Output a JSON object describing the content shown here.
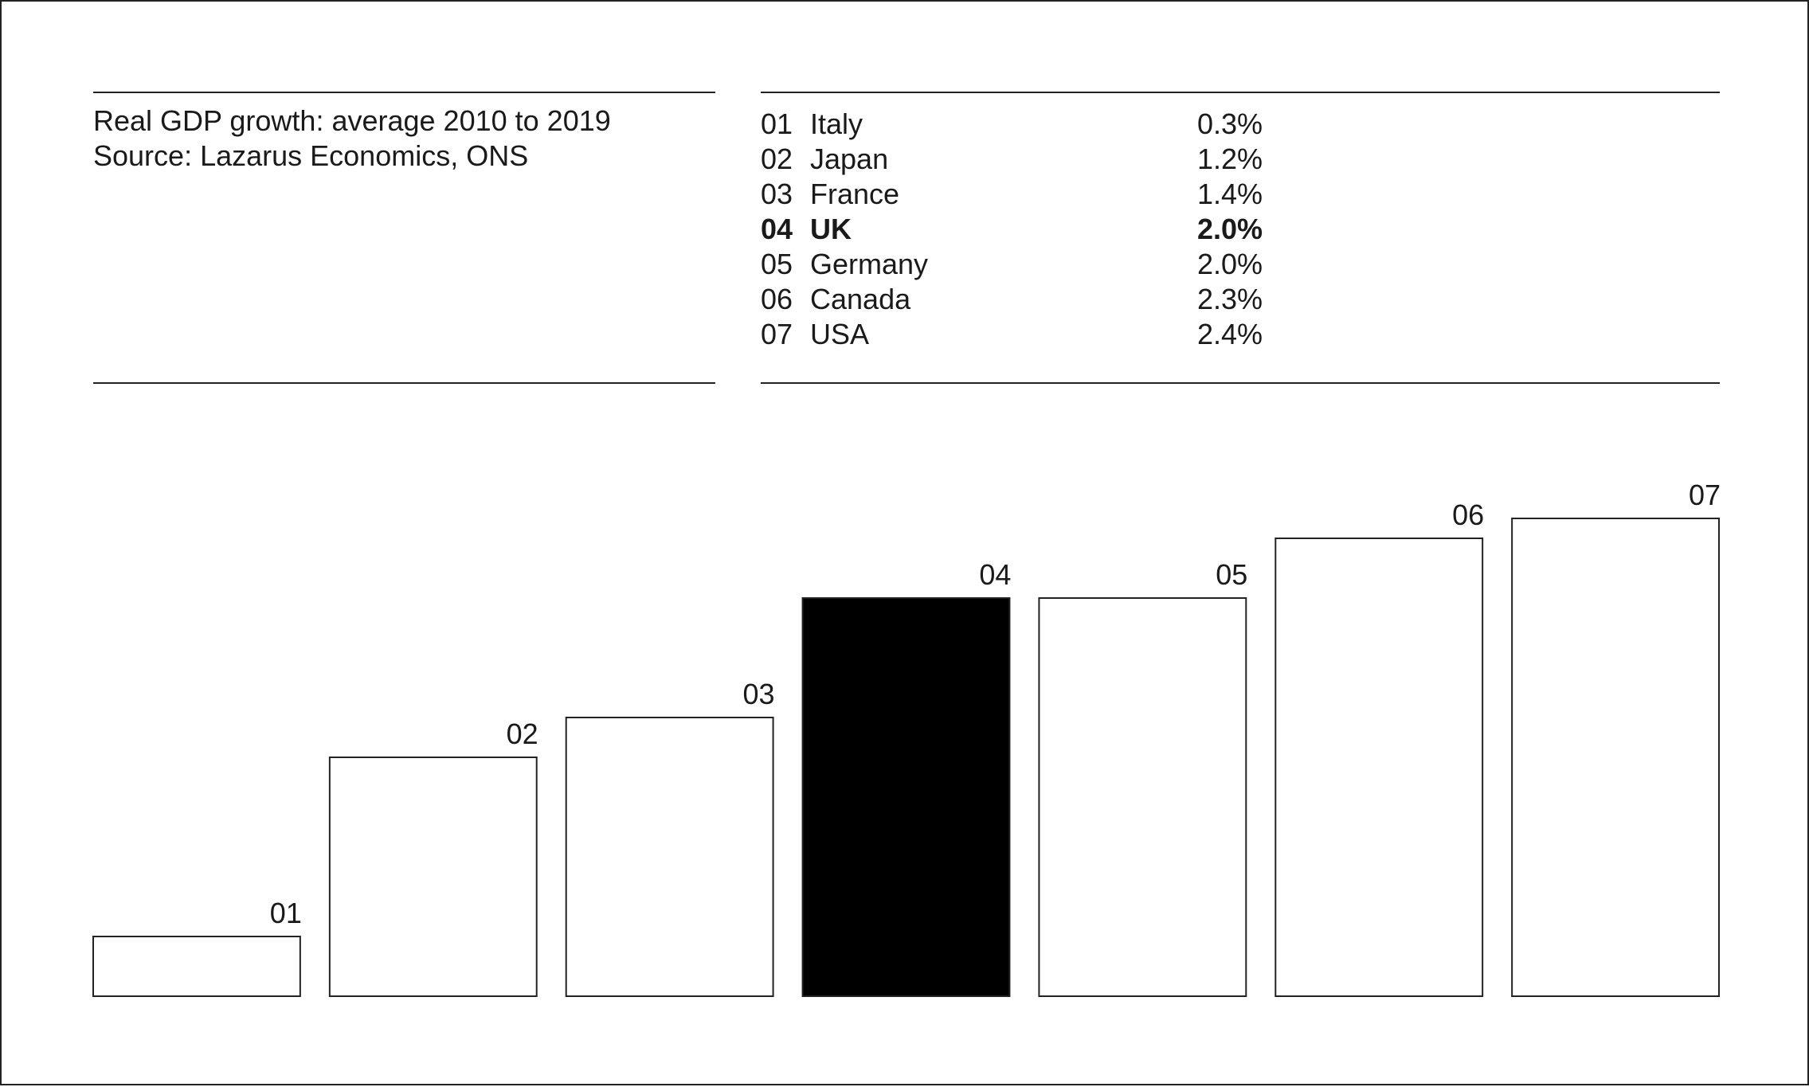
{
  "caption": {
    "line1": "Real GDP growth: average 2010 to 2019",
    "line2": "Source: Lazarus Economics, ONS"
  },
  "legend": [
    {
      "rank": "01",
      "country": "Italy",
      "value": "0.3%",
      "highlight": false
    },
    {
      "rank": "02",
      "country": "Japan",
      "value": "1.2%",
      "highlight": false
    },
    {
      "rank": "03",
      "country": "France",
      "value": "1.4%",
      "highlight": false
    },
    {
      "rank": "04",
      "country": "UK",
      "value": "2.0%",
      "highlight": true
    },
    {
      "rank": "05",
      "country": "Germany",
      "value": "2.0%",
      "highlight": false
    },
    {
      "rank": "06",
      "country": "Canada",
      "value": "2.3%",
      "highlight": false
    },
    {
      "rank": "07",
      "country": "USA",
      "value": "2.4%",
      "highlight": false
    }
  ],
  "colors": {
    "highlight_fill": "#000000",
    "bar_fill": "#ffffff",
    "stroke": "#222222"
  },
  "chart_data": {
    "type": "bar",
    "categories": [
      "01",
      "02",
      "03",
      "04",
      "05",
      "06",
      "07"
    ],
    "values": [
      0.3,
      1.2,
      1.4,
      2.0,
      2.0,
      2.3,
      2.4
    ],
    "highlight_index": 3,
    "title": "",
    "xlabel": "",
    "ylabel": "",
    "ylim": [
      0,
      2.4
    ],
    "grid": false
  }
}
